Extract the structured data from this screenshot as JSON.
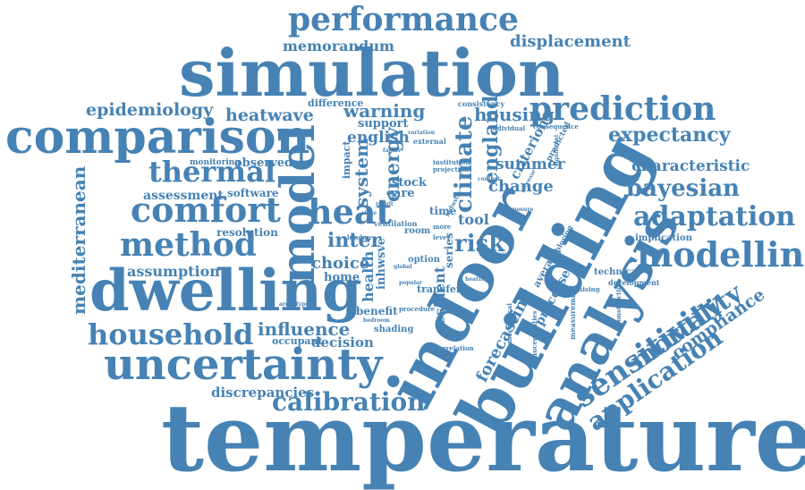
{
  "accent_color": "#4682b4",
  "words": {
    "temperature": "temperature",
    "building": "building",
    "simulation": "simulation",
    "comparison": "comparison",
    "dwelling": "dwelling",
    "uncertainty": "uncertainty",
    "indoor": "indoor",
    "analysis": "analysis",
    "model": "model",
    "performance": "performance",
    "comfort": "comfort",
    "method": "method",
    "household": "household",
    "heat": "heat",
    "modelling": "modelling",
    "prediction": "prediction",
    "thermal": "thermal",
    "calibration": "calibration",
    "adaptation": "adaptation",
    "sensitivity": "sensitivity",
    "mortality": "mortality",
    "application": "application",
    "bayesian": "bayesian",
    "expectancy": "expectancy",
    "characteristic": "characteristic",
    "displacement": "displacement",
    "memorandum": "memorandum",
    "epidemiology": "epidemiology",
    "heatwave": "heatwave",
    "warning": "warning",
    "housing": "housing",
    "difference": "difference",
    "mediterranean": "mediterranean",
    "climate": "climate",
    "energy": "energy",
    "england": "england",
    "system": "system",
    "english": "english",
    "support": "support",
    "assessment": "assessment",
    "software": "software",
    "monitoring": "monitoring",
    "observed": "observed",
    "resolution": "resolution",
    "assumption": "assumption",
    "risk": "risk",
    "inter": "inter",
    "choice": "choice",
    "home": "home",
    "tool": "tool",
    "change": "change",
    "summer": "summer",
    "criterion": "criterion",
    "stock": "stock",
    "care": "care",
    "influence": "influence",
    "occupant": "occupant",
    "decision": "decision",
    "benefit": "benefit",
    "shading": "shading",
    "discrepancies": "discrepancies",
    "forecasting": "forecasting",
    "processes": "processes",
    "compliance": "compliance",
    "implication": "implication",
    "technical": "technical",
    "development": "development",
    "average": "average",
    "resident": "resident",
    "health": "health",
    "inhwsve": "inhwsve",
    "ventilation": "ventilation",
    "option": "option",
    "transfer": "transfer",
    "series": "series",
    "time": "time",
    "room": "room",
    "external": "external",
    "impact": "impact",
    "consistency": "consistency",
    "individual": "individual",
    "consequence": "consequence",
    "predicted": "predicted",
    "institution": "institution",
    "projection": "projection",
    "variation": "variation",
    "minimising": "minimising",
    "measurement": "measurement",
    "construction": "construction",
    "uncertainties": "uncertainties",
    "mechanical": "mechanical",
    "correlation": "correlation",
    "procedure": "procedure",
    "london": "london",
    "level": "level",
    "more": "more",
    "exploring": "exploring",
    "exposure": "exposure",
    "significant": "significant",
    "accuracy": "accuracy",
    "archetype": "archetype",
    "bedroom": "bedroom",
    "popular": "popular",
    "heating": "heating",
    "industry": "industry",
    "increase": "increase",
    "context": "context",
    "factor": "factor",
    "result": "result",
    "close": "close",
    "global": "global"
  }
}
